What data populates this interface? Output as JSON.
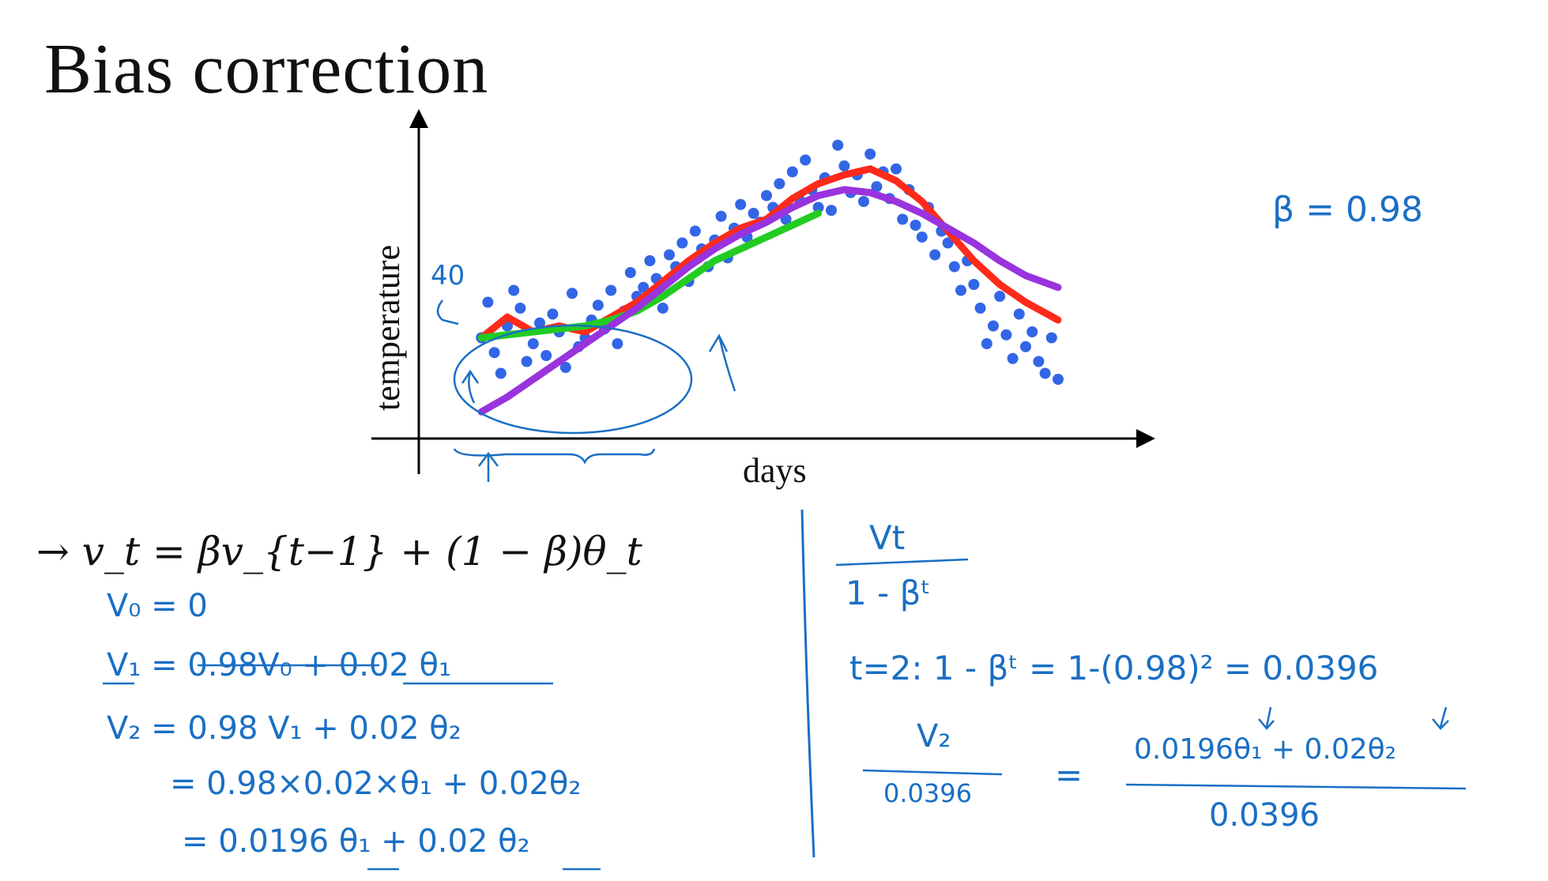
{
  "slide": {
    "title": "Bias correction"
  },
  "chart": {
    "xlabel": "days",
    "ylabel": "temperature",
    "annotation_40": "40"
  },
  "chart_data": {
    "type": "scatter",
    "title": "",
    "xlabel": "days",
    "ylabel": "temperature",
    "xlim": [
      0,
      100
    ],
    "ylim": [
      0,
      100
    ],
    "grid": false,
    "x": [
      6,
      7,
      8,
      9,
      10,
      11,
      12,
      13,
      14,
      15,
      16,
      17,
      18,
      19,
      20,
      21,
      22,
      23,
      24,
      25,
      26,
      27,
      28,
      29,
      30,
      31,
      32,
      33,
      34,
      35,
      36,
      37,
      38,
      39,
      40,
      41,
      42,
      43,
      44,
      45,
      46,
      47,
      48,
      49,
      50,
      51,
      52,
      53,
      54,
      55,
      56,
      57,
      58,
      59,
      60,
      61,
      62,
      63,
      64,
      65,
      66,
      67,
      68,
      69,
      70,
      71,
      72,
      73,
      74,
      75,
      76,
      77,
      78,
      79,
      80,
      81,
      82,
      83,
      84,
      85,
      86,
      87,
      88,
      89,
      90,
      91,
      92,
      93,
      94,
      95
    ],
    "y": [
      30,
      42,
      25,
      18,
      34,
      46,
      40,
      22,
      28,
      35,
      24,
      38,
      32,
      20,
      45,
      27,
      30,
      36,
      41,
      33,
      46,
      28,
      39,
      52,
      44,
      47,
      56,
      50,
      40,
      58,
      54,
      62,
      49,
      66,
      60,
      54,
      63,
      71,
      57,
      67,
      75,
      64,
      72,
      69,
      78,
      74,
      82,
      70,
      86,
      77,
      90,
      80,
      74,
      84,
      73,
      95,
      88,
      79,
      85,
      76,
      92,
      81,
      86,
      77,
      87,
      70,
      80,
      68,
      64,
      74,
      58,
      66,
      62,
      54,
      46,
      56,
      48,
      40,
      28,
      34,
      44,
      31,
      23,
      38,
      27,
      32,
      22,
      18,
      30,
      16
    ],
    "series": [
      {
        "name": "",
        "color": "#3366e6",
        "values_note": "scatter samples"
      },
      {
        "name": "",
        "color": "#ff2a1a",
        "x": [
          6,
          10,
          14,
          18,
          22,
          26,
          30,
          34,
          38,
          42,
          46,
          50,
          54,
          58,
          62,
          66,
          70,
          74,
          78,
          82,
          86,
          90,
          95
        ],
        "y": [
          30,
          37,
          32,
          34,
          32,
          37,
          42,
          49,
          56,
          62,
          67,
          70,
          77,
          82,
          85,
          87,
          83,
          76,
          66,
          56,
          48,
          42,
          36
        ]
      },
      {
        "name": "",
        "color": "#22cc22",
        "x": [
          6,
          10,
          14,
          18,
          22,
          26,
          30,
          34,
          38,
          42,
          46,
          50,
          54,
          58
        ],
        "y": [
          30,
          31,
          32,
          33,
          34,
          36,
          39,
          44,
          50,
          56,
          60,
          64,
          68,
          72
        ]
      },
      {
        "name": "",
        "color": "#9933dd",
        "x": [
          6,
          10,
          14,
          18,
          22,
          26,
          30,
          34,
          38,
          42,
          46,
          50,
          54,
          58,
          62,
          66,
          70,
          74,
          78,
          82,
          86,
          90,
          95
        ],
        "y": [
          5,
          10,
          16,
          22,
          28,
          34,
          40,
          47,
          54,
          60,
          65,
          69,
          74,
          78,
          80,
          79,
          76,
          72,
          67,
          62,
          56,
          51,
          47
        ]
      }
    ]
  },
  "notes": {
    "beta": "β = 0.98",
    "formula_main": "→ v_t = βv_{t−1} + (1 − β)θ_t",
    "lines_left": [
      "V₀ = 0",
      "V₁ = 0.98V₀ + 0.02 θ₁",
      "V₂ = 0.98 V₁ + 0.02 θ₂",
      "= 0.98×0.02×θ₁ + 0.02θ₂",
      "= 0.0196 θ₁ + 0.02 θ₂"
    ],
    "right_fraction_top": "Vt",
    "right_fraction_bottom": "1 - βᵗ",
    "t2_line": "t=2:  1 - βᵗ  =  1-(0.98)² = 0.0396",
    "v2_num": "V₂",
    "v2_den": "0.0396",
    "v2_eq": "=",
    "v2_rhs_num": "0.0196θ₁ + 0.02θ₂",
    "v2_rhs_den": "0.0396"
  }
}
